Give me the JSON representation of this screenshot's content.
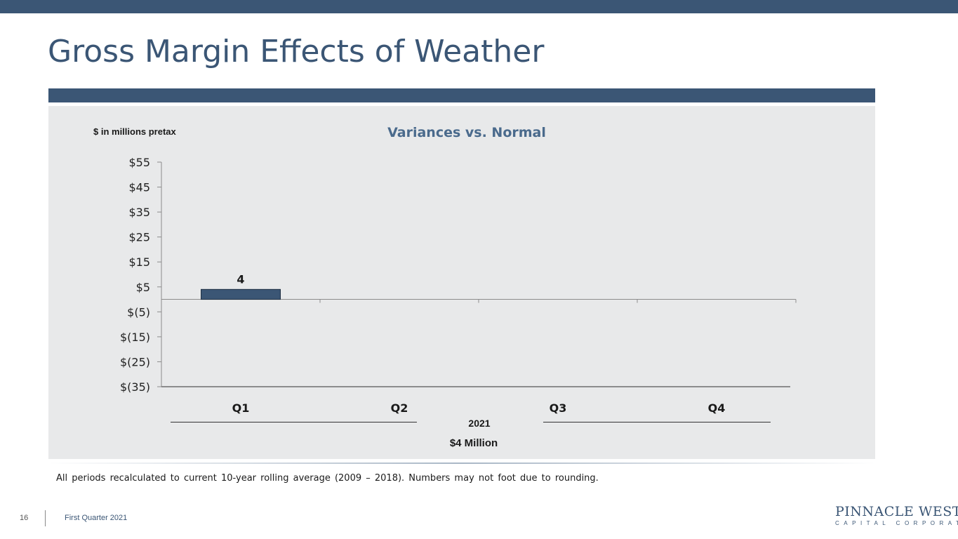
{
  "slide": {
    "title": "Gross Margin Effects of Weather",
    "footnote": "All periods recalculated to current 10-year rolling average (2009 – 2018). Numbers may not foot due to rounding.",
    "page_number": "16",
    "footer_text": "First Quarter 2021"
  },
  "logo": {
    "main": "PINNACLE WEST",
    "sub": "CAPITAL CORPORATION"
  },
  "chart_data": {
    "type": "bar",
    "title": "Variances vs. Normal",
    "unit_label": "$ in millions pretax",
    "categories": [
      "Q1",
      "Q2",
      "Q3",
      "Q4"
    ],
    "values": [
      4,
      null,
      null,
      null
    ],
    "data_labels": [
      "4",
      "",
      "",
      ""
    ],
    "ylim": [
      -35,
      55
    ],
    "y_ticks": [
      55,
      45,
      35,
      25,
      15,
      5,
      -5,
      -15,
      -25,
      -35
    ],
    "y_tick_labels": [
      "$55",
      "$45",
      "$35",
      "$25",
      "$15",
      "$5",
      "$(5)",
      "$(15)",
      "$(25)",
      "$(35)"
    ],
    "group_label": "2021",
    "total_label": "$4 Million",
    "bar_color": "#3b5675",
    "grid": false
  }
}
